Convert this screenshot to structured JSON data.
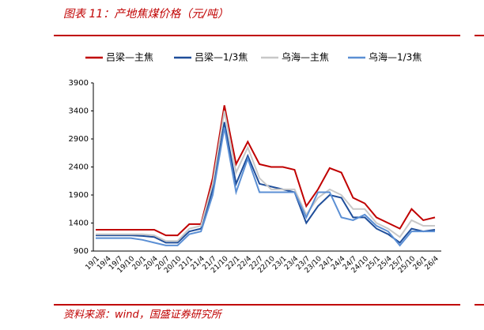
{
  "chart_data": {
    "type": "line",
    "title": "图表 11：产地焦煤价格（元/吨）",
    "source": "资料来源：wind，国盛证券研究所",
    "categories": [
      "19/1",
      "19/4",
      "19/7",
      "19/10",
      "20/1",
      "20/4",
      "20/7",
      "20/10",
      "21/1",
      "21/4",
      "21/7",
      "21/10",
      "22/1",
      "22/4",
      "22/7",
      "22/10",
      "23/1",
      "23/4",
      "23/7",
      "23/10",
      "24/1",
      "24/4",
      "24/7",
      "24/10",
      "25/1",
      "25/4",
      "25/7",
      "25/10",
      "26/1",
      "26/4"
    ],
    "series": [
      {
        "name": "吕梁—主焦",
        "color": "#c00000",
        "values": [
          1280,
          1280,
          1280,
          1280,
          1280,
          1280,
          1180,
          1180,
          1380,
          1380,
          2200,
          3500,
          2450,
          2850,
          2450,
          2400,
          2400,
          2350,
          1700,
          2000,
          2380,
          2300,
          1850,
          1750,
          1500,
          1400,
          1300,
          1650,
          1450,
          1500
        ]
      },
      {
        "name": "吕梁—1/3焦",
        "color": "#1f4e9a",
        "values": [
          1180,
          1180,
          1180,
          1180,
          1170,
          1150,
          1050,
          1050,
          1250,
          1300,
          2000,
          3200,
          2100,
          2600,
          2100,
          2050,
          2000,
          1950,
          1400,
          1700,
          1900,
          1850,
          1500,
          1500,
          1300,
          1200,
          1050,
          1300,
          1250,
          1280
        ]
      },
      {
        "name": "乌海—主焦",
        "color": "#c8c8c8",
        "values": [
          1200,
          1200,
          1200,
          1200,
          1200,
          1180,
          1080,
          1080,
          1300,
          1350,
          2100,
          3400,
          2300,
          2750,
          2200,
          2000,
          2000,
          2000,
          1550,
          1850,
          2000,
          1900,
          1650,
          1650,
          1400,
          1300,
          1150,
          1450,
          1350,
          1350
        ]
      },
      {
        "name": "乌海—1/3焦",
        "color": "#5b8fd4",
        "values": [
          1130,
          1130,
          1130,
          1130,
          1100,
          1050,
          1000,
          1000,
          1200,
          1250,
          1900,
          3100,
          1950,
          2550,
          1950,
          1950,
          1950,
          1950,
          1500,
          1950,
          1950,
          1500,
          1450,
          1550,
          1350,
          1250,
          1000,
          1250,
          1250,
          1250
        ]
      }
    ],
    "ylim": [
      900,
      3900
    ],
    "yticks": [
      900,
      1400,
      1900,
      2400,
      2900,
      3400,
      3900
    ],
    "grid": false
  }
}
